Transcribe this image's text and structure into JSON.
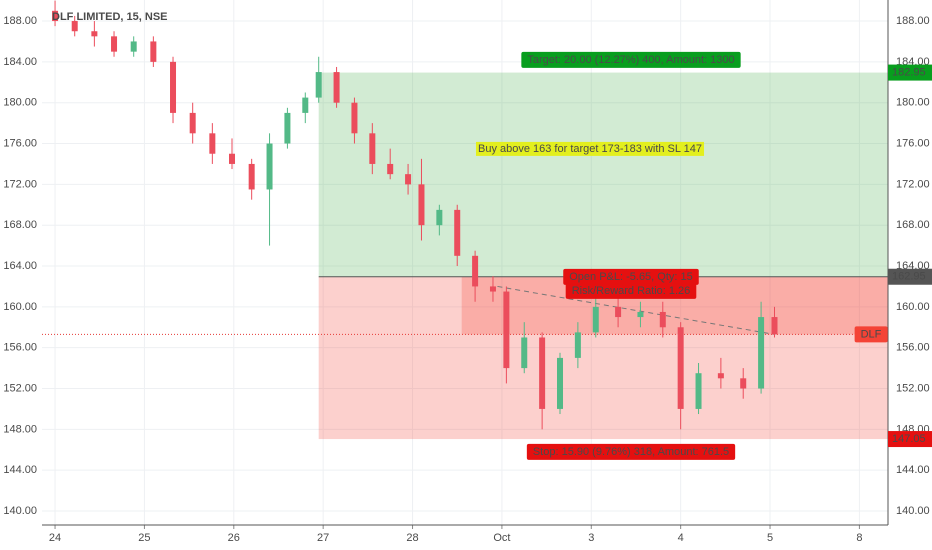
{
  "chart_data": {
    "type": "candlestick",
    "title": "DLF LIMITED, 15, NSE",
    "up_color": "#53b987",
    "down_color": "#eb4d5c",
    "grid": true,
    "xlim": [
      -0.146,
      9.32
    ],
    "ylim": [
      138.63,
      190.06
    ],
    "xticks": [
      {
        "value": 0,
        "label": "24"
      },
      {
        "value": 1,
        "label": "25"
      },
      {
        "value": 2,
        "label": "26"
      },
      {
        "value": 3,
        "label": "27"
      },
      {
        "value": 4,
        "label": "28"
      },
      {
        "value": 5,
        "label": "Oct"
      },
      {
        "value": 6,
        "label": "3"
      },
      {
        "value": 7,
        "label": "4"
      },
      {
        "value": 8,
        "label": "5"
      },
      {
        "value": 9,
        "label": "8"
      }
    ],
    "yticks": [
      {
        "value": 140,
        "label": "140.00"
      },
      {
        "value": 144,
        "label": "144.00"
      },
      {
        "value": 148,
        "label": "148.00"
      },
      {
        "value": 152,
        "label": "152.00"
      },
      {
        "value": 156,
        "label": "156.00"
      },
      {
        "value": 160,
        "label": "160.00"
      },
      {
        "value": 164,
        "label": "164.00"
      },
      {
        "value": 168,
        "label": "168.00"
      },
      {
        "value": 172,
        "label": "172.00"
      },
      {
        "value": 176,
        "label": "176.00"
      },
      {
        "value": 180,
        "label": "180.00"
      },
      {
        "value": 184,
        "label": "184.00"
      },
      {
        "value": 188,
        "label": "188.00"
      }
    ],
    "candles": {
      "x": [
        0,
        0.22,
        0.44,
        0.66,
        0.88,
        1.1,
        1.32,
        1.54,
        1.76,
        1.98,
        2.2,
        2.4,
        2.6,
        2.8,
        2.95,
        3.15,
        3.35,
        3.55,
        3.75,
        3.95,
        4.1,
        4.3,
        4.5,
        4.7,
        4.9,
        5.05,
        5.25,
        5.45,
        5.65,
        5.85,
        6.05,
        6.3,
        6.55,
        6.8,
        7.0,
        7.2,
        7.45,
        7.7,
        7.9,
        8.05
      ],
      "open": [
        189,
        188,
        187,
        186.5,
        185,
        186,
        184,
        179,
        177,
        175,
        174,
        171.5,
        176,
        179,
        180.5,
        183,
        180,
        177,
        174,
        173,
        172,
        168,
        169.5,
        165,
        162,
        161.5,
        154,
        157,
        150,
        155,
        157.5,
        160,
        159,
        159.5,
        158,
        150,
        153.5,
        153,
        152,
        159
      ],
      "high": [
        190,
        188.5,
        188,
        187,
        186.5,
        186.5,
        184.5,
        180,
        178,
        176.5,
        174.5,
        177,
        179.5,
        181,
        184.5,
        183.5,
        180.5,
        178,
        175.5,
        174,
        174.5,
        170,
        170,
        165.5,
        163,
        162,
        158.5,
        157.5,
        155.5,
        158.5,
        161,
        161,
        160.5,
        160.5,
        158.5,
        154.5,
        155,
        154,
        160.5,
        160
      ],
      "low": [
        187.5,
        186.5,
        185.5,
        184.5,
        184.5,
        183.5,
        178,
        176,
        174,
        173.5,
        170.5,
        166,
        175.5,
        178,
        180,
        179.5,
        176,
        173,
        172.5,
        171,
        166.5,
        167,
        164,
        160.5,
        160.5,
        152.5,
        153.5,
        148,
        149.5,
        154,
        157,
        158,
        158,
        157,
        148,
        149.5,
        152,
        151,
        151.5,
        157
      ],
      "close": [
        188,
        187,
        186.5,
        185,
        186,
        184,
        179,
        177,
        175,
        174,
        171.5,
        176,
        179,
        180.5,
        183,
        180,
        177,
        174,
        173,
        172,
        168,
        169.5,
        165,
        162,
        161.5,
        154,
        157,
        150,
        155,
        157.5,
        160,
        159,
        159.5,
        158,
        150,
        153.5,
        153,
        152,
        159,
        157.3
      ]
    },
    "position": {
      "start_x": 2.95,
      "entry": 162.95,
      "target": 182.95,
      "stop": 147.05,
      "pnl_start_x": 4.55,
      "last_price": 157.3,
      "symbol": "DLF",
      "target_label": "Target: 20.00 (12.27%) 400, Amount: 1300",
      "stop_label": "Stop: 15.90 (9.76%) 318, Amount: 761.5",
      "pnl_label": "Open P&L: -5.65, Qty: 15",
      "ratio_label": "Risk/Reward Ratio: 1.26",
      "trend_x": [
        4.95,
        8.05
      ],
      "trend_y": [
        162,
        157.3
      ]
    },
    "annotation": "Buy above 163 for target 173-183 with SL 147"
  }
}
